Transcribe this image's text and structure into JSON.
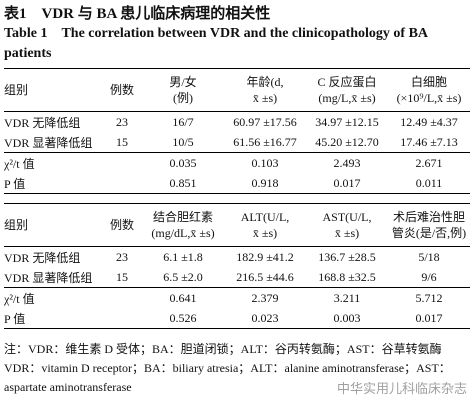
{
  "header": {
    "title_cn": "表1　VDR 与 BA 患儿临床病理的相关性",
    "title_en": "Table 1　The correlation between VDR and the clinicopathology of BA patients"
  },
  "tables": [
    {
      "columns": [
        [
          "组别"
        ],
        [
          "例数"
        ],
        [
          "男/女",
          "(例)"
        ],
        [
          "年龄(d,",
          "x̄ ±s)"
        ],
        [
          "C 反应蛋白",
          "(mg/L,x̄ ±s)"
        ],
        [
          "白细胞",
          "(×10⁹/L,x̄ ±s)"
        ]
      ],
      "rows": [
        [
          "VDR 无降低组",
          "23",
          "16/7",
          "60.97 ±17.56",
          "34.97 ±12.15",
          "12.49 ±4.37"
        ],
        [
          "VDR 显著降低组",
          "15",
          "10/5",
          "61.56 ±16.77",
          "45.20 ±12.70",
          "17.46 ±7.13"
        ],
        [
          "χ²/t 值",
          "0.035",
          "0.103",
          "2.493",
          "2.671"
        ],
        [
          "P 值",
          "0.851",
          "0.918",
          "0.017",
          "0.011"
        ]
      ]
    },
    {
      "columns": [
        [
          "组别"
        ],
        [
          "例数"
        ],
        [
          "结合胆红素",
          "(mg/dL,x̄ ±s)"
        ],
        [
          "ALT(U/L,",
          "x̄ ±s)"
        ],
        [
          "AST(U/L,",
          "x̄ ±s)"
        ],
        [
          "术后难治性胆",
          "管炎(是/否,例)"
        ]
      ],
      "rows": [
        [
          "VDR 无降低组",
          "23",
          "6.1 ±1.8",
          "182.9 ±41.2",
          "136.7 ±28.5",
          "5/18"
        ],
        [
          "VDR 显著降低组",
          "15",
          "6.5 ±2.0",
          "216.5 ±44.6",
          "168.8 ±32.5",
          "9/6"
        ],
        [
          "χ²/t 值",
          "0.641",
          "2.379",
          "3.211",
          "5.712"
        ],
        [
          "P 值",
          "0.526",
          "0.023",
          "0.003",
          "0.017"
        ]
      ]
    }
  ],
  "note": "注：VDR：维生素 D 受体；BA：胆道闭锁；ALT：谷丙转氨酶；AST：谷草转氨酶　VDR：vitamin D receptor；BA：biliary atresia；ALT：alanine aminotransferase；AST：aspartate aminotransferase",
  "watermark": "中华实用儿科临床杂志"
}
